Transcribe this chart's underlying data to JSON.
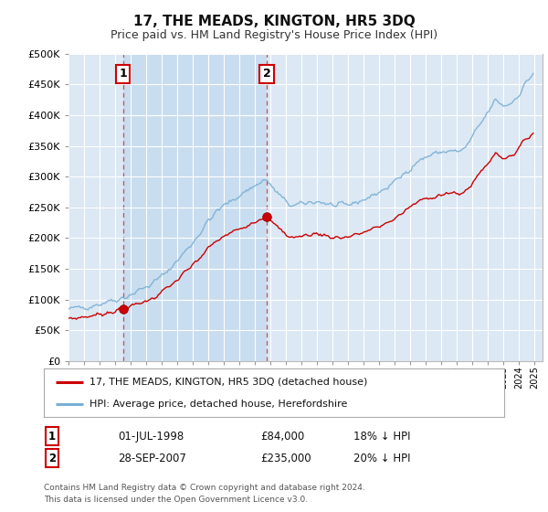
{
  "title": "17, THE MEADS, KINGTON, HR5 3DQ",
  "subtitle": "Price paid vs. HM Land Registry's House Price Index (HPI)",
  "ylim": [
    0,
    500000
  ],
  "yticks": [
    0,
    50000,
    100000,
    150000,
    200000,
    250000,
    300000,
    350000,
    400000,
    450000,
    500000
  ],
  "xlim_start": 1995.0,
  "xlim_end": 2025.5,
  "sale1_date_num": 1998.5,
  "sale1_price": 84000,
  "sale2_date_num": 2007.75,
  "sale2_price": 235000,
  "legend_entry1": "17, THE MEADS, KINGTON, HR5 3DQ (detached house)",
  "legend_entry2": "HPI: Average price, detached house, Herefordshire",
  "table_row1_num": "1",
  "table_row1_date": "01-JUL-1998",
  "table_row1_price": "£84,000",
  "table_row1_hpi": "18% ↓ HPI",
  "table_row2_num": "2",
  "table_row2_date": "28-SEP-2007",
  "table_row2_price": "£235,000",
  "table_row2_hpi": "20% ↓ HPI",
  "footnote": "Contains HM Land Registry data © Crown copyright and database right 2024.\nThis data is licensed under the Open Government Licence v3.0.",
  "red_line_color": "#cc0000",
  "blue_line_color": "#7bafd4",
  "plot_bg_color": "#dce8f4",
  "plot_bg_between_color": "#c8ddef",
  "grid_color": "#ffffff",
  "title_fontsize": 11,
  "subtitle_fontsize": 9
}
